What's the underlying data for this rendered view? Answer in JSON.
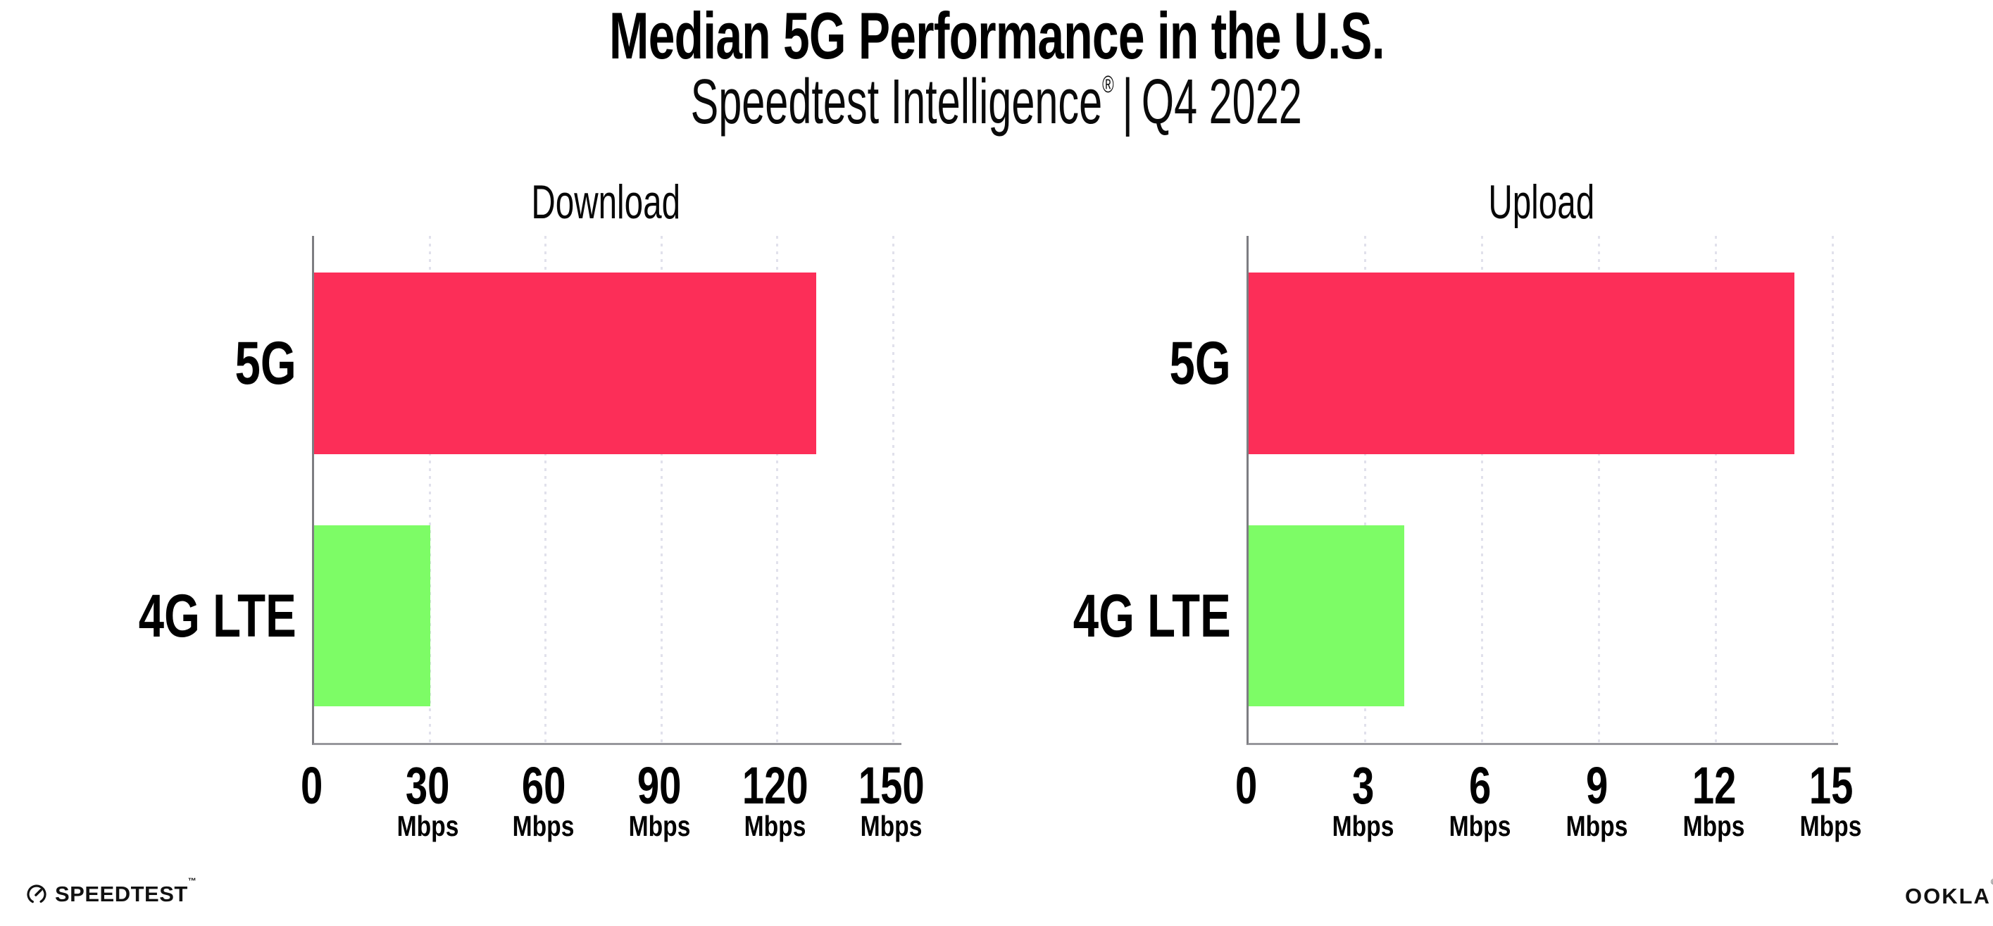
{
  "page": {
    "title": "Median 5G Performance in the U.S.",
    "subtitle_brand": "Speedtest Intelligence",
    "subtitle_reg": "®",
    "subtitle_sep": "|",
    "subtitle_period": "Q4 2022"
  },
  "footer": {
    "speedtest_label": "SPEEDTEST",
    "speedtest_tm": "™",
    "speedtest_icon": "gauge-icon",
    "ookla_label": "OOKLA",
    "ookla_reg": "®"
  },
  "colors": {
    "bar_5g": "#FC2E58",
    "bar_4g_lte": "#7DFC66",
    "gridline": "#E1E1EC",
    "axis_y": "#7d7d82",
    "axis_x": "#97979c",
    "text": "#000000",
    "background": "#FFFFFF"
  },
  "chart_data": [
    {
      "type": "bar",
      "orientation": "horizontal",
      "title": "Download",
      "categories": [
        "5G",
        "4G LTE"
      ],
      "values": [
        130,
        30
      ],
      "unit": "Mbps",
      "xlim": [
        0,
        152
      ],
      "xticks": [
        0,
        30,
        60,
        90,
        120,
        150
      ],
      "tick_unit_label": "Mbps",
      "bar_colors": [
        "#FC2E58",
        "#7DFC66"
      ],
      "grid": "vertical-dotted",
      "legend": "none"
    },
    {
      "type": "bar",
      "orientation": "horizontal",
      "title": "Upload",
      "categories": [
        "5G",
        "4G LTE"
      ],
      "values": [
        14,
        4
      ],
      "unit": "Mbps",
      "xlim": [
        0,
        15.1
      ],
      "xticks": [
        0,
        3,
        6,
        9,
        12,
        15
      ],
      "tick_unit_label": "Mbps",
      "bar_colors": [
        "#FC2E58",
        "#7DFC66"
      ],
      "grid": "vertical-dotted",
      "legend": "none"
    }
  ]
}
